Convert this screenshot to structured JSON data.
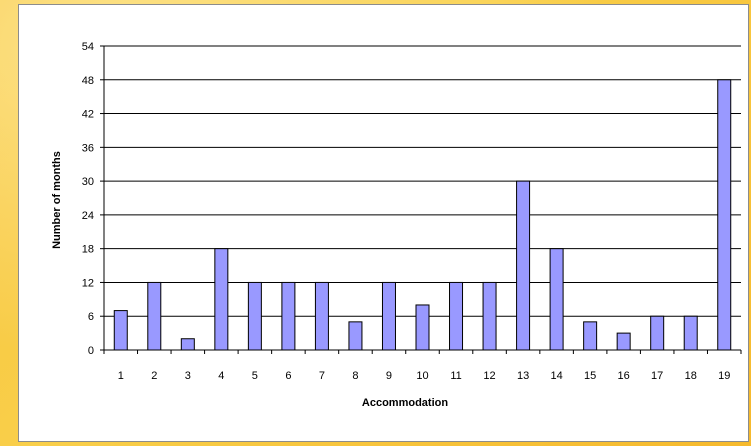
{
  "chart_data": {
    "type": "bar",
    "xlabel": "Accommodation",
    "ylabel": "Number of months",
    "categories": [
      "1",
      "2",
      "3",
      "4",
      "5",
      "6",
      "7",
      "8",
      "9",
      "10",
      "11",
      "12",
      "13",
      "14",
      "15",
      "16",
      "17",
      "18",
      "19"
    ],
    "values": [
      7,
      12,
      2,
      18,
      12,
      12,
      12,
      5,
      12,
      8,
      12,
      12,
      30,
      18,
      5,
      3,
      6,
      6,
      48
    ],
    "ylim": [
      0,
      54
    ],
    "yticks": [
      0,
      6,
      12,
      18,
      24,
      30,
      36,
      42,
      48,
      54
    ],
    "grid": true,
    "legend": "none",
    "bar_color": "#9999ff",
    "bar_stroke": "#000000"
  }
}
